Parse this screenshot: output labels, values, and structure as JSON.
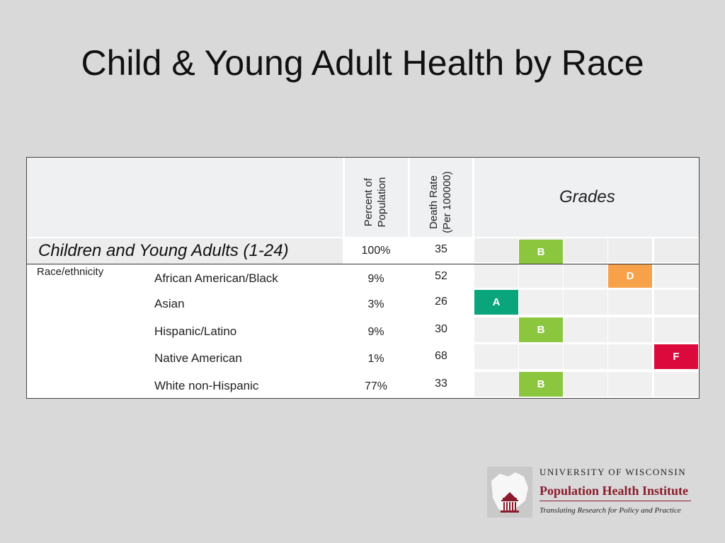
{
  "slide": {
    "title": "Child & Young Adult Health by Race"
  },
  "table": {
    "headers": {
      "percent": "Percent of\nPopulation",
      "death_rate": "Death Rate\n(Per 100000)",
      "grades": "Grades"
    },
    "summary": {
      "label": "Children and Young Adults (1-24)",
      "percent": "100%",
      "death_rate": "35",
      "grade": "B",
      "grade_col": 1
    },
    "group_label": "Race/ethnicity",
    "rows": [
      {
        "name": "African American/Black",
        "percent": "9%",
        "death_rate": "52",
        "grade": "D",
        "grade_col": 3
      },
      {
        "name": "Asian",
        "percent": "3%",
        "death_rate": "26",
        "grade": "A",
        "grade_col": 0
      },
      {
        "name": "Hispanic/Latino",
        "percent": "9%",
        "death_rate": "30",
        "grade": "B",
        "grade_col": 1
      },
      {
        "name": "Native American",
        "percent": "1%",
        "death_rate": "68",
        "grade": "F",
        "grade_col": 4
      },
      {
        "name": "White non-Hispanic",
        "percent": "77%",
        "death_rate": "33",
        "grade": "B",
        "grade_col": 1
      }
    ],
    "grade_colors": {
      "A": "#0aa57a",
      "B": "#8cc63f",
      "D": "#f7a24a",
      "F": "#dc0a3c"
    }
  },
  "logo": {
    "line1": "UNIVERSITY OF WISCONSIN",
    "line2": "Population Health Institute",
    "line3": "Translating Research for Policy and Practice"
  }
}
